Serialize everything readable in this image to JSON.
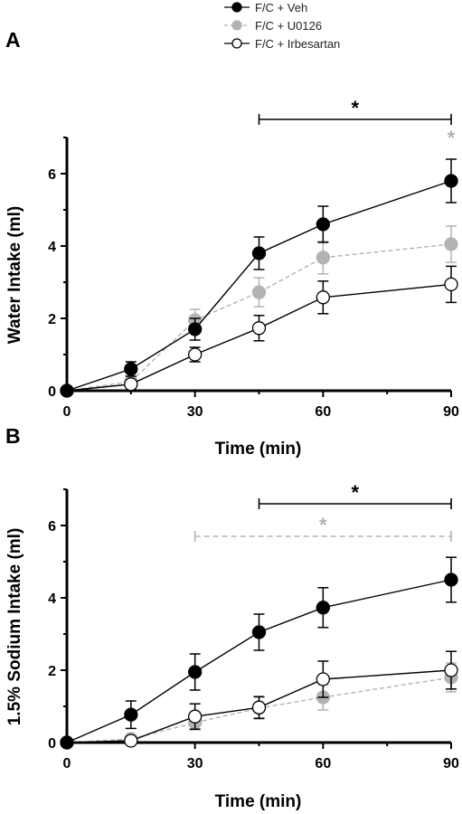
{
  "legend": [
    {
      "label": "F/C + Veh",
      "fill": "#000000",
      "stroke": "#000000",
      "dash": false
    },
    {
      "label": "F/C + U0126",
      "fill": "#b3b3b3",
      "stroke": "#b3b3b3",
      "dash": true
    },
    {
      "label": "F/C + Irbesartan",
      "fill": "#ffffff",
      "stroke": "#000000",
      "dash": false
    }
  ],
  "chart_data": [
    {
      "type": "line",
      "panel_label": "A",
      "xlabel": "Time (min)",
      "ylabel": "Water Intake (ml)",
      "xlim": [
        0,
        90
      ],
      "ylim": [
        0,
        7
      ],
      "x_ticks": [
        0,
        30,
        60,
        90
      ],
      "y_ticks": [
        0,
        2,
        4,
        6
      ],
      "grid": false,
      "x": [
        0,
        15,
        30,
        45,
        60,
        90
      ],
      "series": [
        {
          "name": "F/C + Veh",
          "color": "#000000",
          "marker_fill": "#000000",
          "dash": false,
          "values": [
            0,
            0.6,
            1.7,
            3.8,
            4.6,
            5.8
          ],
          "errors": [
            0,
            0.2,
            0.3,
            0.45,
            0.5,
            0.6
          ]
        },
        {
          "name": "F/C + U0126",
          "color": "#b3b3b3",
          "marker_fill": "#b3b3b3",
          "dash": true,
          "values": [
            0,
            0.25,
            1.95,
            2.72,
            3.68,
            4.05
          ],
          "errors": [
            0,
            0.15,
            0.3,
            0.4,
            0.45,
            0.5
          ]
        },
        {
          "name": "F/C + Irbesartan",
          "color": "#000000",
          "marker_fill": "#ffffff",
          "dash": false,
          "values": [
            0,
            0.18,
            1.0,
            1.73,
            2.58,
            2.94
          ],
          "errors": [
            0,
            0.1,
            0.2,
            0.35,
            0.45,
            0.5
          ]
        }
      ],
      "significance": [
        {
          "x_from": 45,
          "x_to": 90,
          "y": 7.5,
          "color": "#000000",
          "dash": false,
          "bar": true,
          "label": "*"
        },
        {
          "x_from": 90,
          "x_to": 90,
          "y": 7.0,
          "color": "#b3b3b3",
          "dash": false,
          "bar": false,
          "label": "*"
        }
      ]
    },
    {
      "type": "line",
      "panel_label": "B",
      "xlabel": "Time (min)",
      "ylabel": "1.5% Sodium Intake (ml)",
      "xlim": [
        0,
        90
      ],
      "ylim": [
        0,
        7
      ],
      "x_ticks": [
        0,
        30,
        60,
        90
      ],
      "y_ticks": [
        0,
        2,
        4,
        6
      ],
      "grid": false,
      "x": [
        0,
        15,
        30,
        45,
        60,
        90
      ],
      "series": [
        {
          "name": "F/C + Veh",
          "color": "#000000",
          "marker_fill": "#000000",
          "dash": false,
          "values": [
            0,
            0.77,
            1.95,
            3.05,
            3.73,
            4.5
          ],
          "errors": [
            0,
            0.38,
            0.5,
            0.5,
            0.55,
            0.62
          ]
        },
        {
          "name": "F/C + U0126",
          "color": "#b3b3b3",
          "marker_fill": "#b3b3b3",
          "dash": true,
          "values": [
            0,
            0.1,
            0.55,
            0.95,
            1.25,
            1.8
          ],
          "errors": [
            0,
            0.1,
            0.2,
            0.3,
            0.35,
            0.4
          ]
        },
        {
          "name": "F/C + Irbesartan",
          "color": "#000000",
          "marker_fill": "#ffffff",
          "dash": false,
          "values": [
            0,
            0.05,
            0.72,
            0.97,
            1.75,
            2.0
          ],
          "errors": [
            0,
            0.05,
            0.35,
            0.3,
            0.5,
            0.52
          ]
        }
      ],
      "significance": [
        {
          "x_from": 45,
          "x_to": 90,
          "y": 6.6,
          "color": "#000000",
          "dash": false,
          "bar": true,
          "label": "*"
        },
        {
          "x_from": 30,
          "x_to": 90,
          "y": 5.7,
          "color": "#b3b3b3",
          "dash": true,
          "bar": true,
          "label": "*"
        }
      ]
    }
  ]
}
